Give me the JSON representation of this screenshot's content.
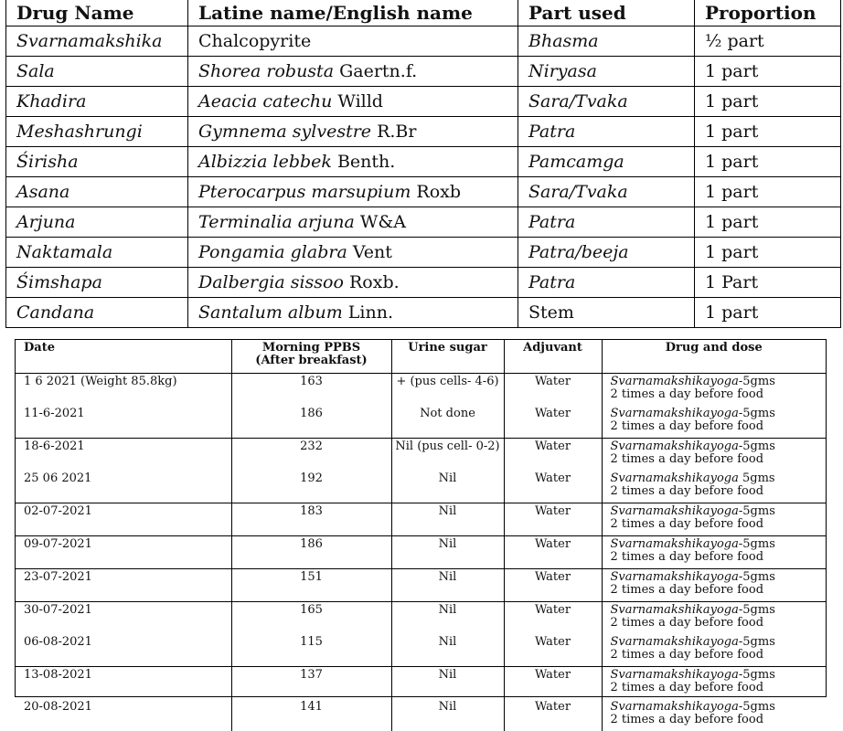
{
  "table1": {
    "headers": [
      "Drug Name",
      "Latine name/English name",
      "Part used",
      "Proportion"
    ],
    "rows": [
      {
        "drug": "Svarnamakshika",
        "latin": "Chalcopyrite",
        "author": "",
        "part": "Bhasma",
        "proportion": "½  part"
      },
      {
        "drug": "Sala",
        "latin": "Shorea  robusta",
        "author": " Gaertn.f.",
        "part": "Niryasa",
        "proportion": "1 part"
      },
      {
        "drug": "Khadira",
        "latin": "Aeacia catechu",
        "author": " Willd",
        "part": "Sara/Tvaka",
        "proportion": "1 part"
      },
      {
        "drug": "Meshashrungi",
        "latin": "Gymnema sylvestre",
        "author": " R.Br",
        "part": "Patra",
        "proportion": "1 part"
      },
      {
        "drug": "Śirisha",
        "latin": "Albizzia lebbek",
        "author": " Benth.",
        "part": "Pamcamga",
        "proportion": "1 part"
      },
      {
        "drug": "Asana",
        "latin": "Pterocarpus marsupium",
        "author": " Roxb",
        "part": "Sara/Tvaka",
        "proportion": "1 part"
      },
      {
        "drug": "Arjuna",
        "latin": "Terminalia arjuna",
        "author": " W&A",
        "part": "Patra",
        "proportion": "1 part"
      },
      {
        "drug": "Naktamala",
        "latin": "Pongamia glabra",
        "author": " Vent",
        "part": "Patra/beeja",
        "proportion": "1 part"
      },
      {
        "drug": "Śimshapa",
        "latin": "Dalbergia sissoo",
        "author": " Roxb.",
        "part": "Patra",
        "proportion": "1 Part"
      },
      {
        "drug": "Candana",
        "latin": "Santalum album",
        "author": " Linn.",
        "part": "Stem",
        "proportion": "1 part"
      }
    ]
  },
  "table2": {
    "headers": {
      "date": "Date",
      "ppbs": "Morning PPBS",
      "ppbs_sub": "(After breakfast)",
      "urine": "Urine sugar",
      "adjuvant": "Adjuvant",
      "drug": "Drug and dose"
    },
    "rows": [
      {
        "date": "1 6 2021 (Weight 85.8kg)",
        "ppbs": "163",
        "urine": "+ (pus cells- 4-6)",
        "adjuvant": "Water",
        "drug_name": "Svarnamakshikayoga",
        "dose1": "-5gms",
        "dose2": "2 times a day before food",
        "sep": false
      },
      {
        "date": "11-6-2021",
        "ppbs": "186",
        "urine": "Not done",
        "adjuvant": "Water",
        "drug_name": "Svarnamakshikayoga",
        "dose1": "-5gms",
        "dose2": "2 times a day before food",
        "sep": false
      },
      {
        "date": "18-6-2021",
        "ppbs": "232",
        "urine": "Nil (pus cell- 0-2)",
        "adjuvant": "Water",
        "drug_name": "Svarnamakshikayoga",
        "dose1": "-5gms",
        "dose2": "2 times a day before food",
        "sep": true
      },
      {
        "date": "25 06 2021",
        "ppbs": "192",
        "urine": "Nil",
        "adjuvant": "Water",
        "drug_name": "Svarnamakshikayoga",
        "dose1": " 5gms",
        "dose2": "2 times a day before food",
        "sep": false
      },
      {
        "date": "02-07-2021",
        "ppbs": "183",
        "urine": "Nil",
        "adjuvant": "Water",
        "drug_name": "Svarnamakshikayoga",
        "dose1": "-5gms",
        "dose2": "2 times a day before food",
        "sep": true
      },
      {
        "date": "09-07-2021",
        "ppbs": "186",
        "urine": "Nil",
        "adjuvant": "Water",
        "drug_name": "Svarnamakshikayoga",
        "dose1": "-5gms",
        "dose2": "2 times a day before food",
        "sep": true
      },
      {
        "date": "23-07-2021",
        "ppbs": "151",
        "urine": "Nil",
        "adjuvant": "Water",
        "drug_name": "Svarnamakshikayoga",
        "dose1": "-5gms",
        "dose2": "2 times a day before food",
        "sep": true
      },
      {
        "date": "30-07-2021",
        "ppbs": "165",
        "urine": "Nil",
        "adjuvant": "Water",
        "drug_name": "Svarnamakshikayoga",
        "dose1": "-5gms",
        "dose2": "2 times a day before food",
        "sep": true
      },
      {
        "date": "06-08-2021",
        "ppbs": "115",
        "urine": "Nil",
        "adjuvant": "Water",
        "drug_name": "Svarnamakshikayoga",
        "dose1": "-5gms",
        "dose2": "2 times a day before food",
        "sep": false
      },
      {
        "date": "13-08-2021",
        "ppbs": "137",
        "urine": "Nil",
        "adjuvant": "Water",
        "drug_name": "Svarnamakshikayoga",
        "dose1": "-5gms",
        "dose2": "2 times a day before food",
        "sep": true
      },
      {
        "date": "20-08-2021",
        "ppbs": "141",
        "urine": "Nil",
        "adjuvant": "Water",
        "drug_name": "Svarnamakshikayoga",
        "dose1": "-5gms",
        "dose2": "2 times a day before food",
        "sep": false
      }
    ]
  }
}
